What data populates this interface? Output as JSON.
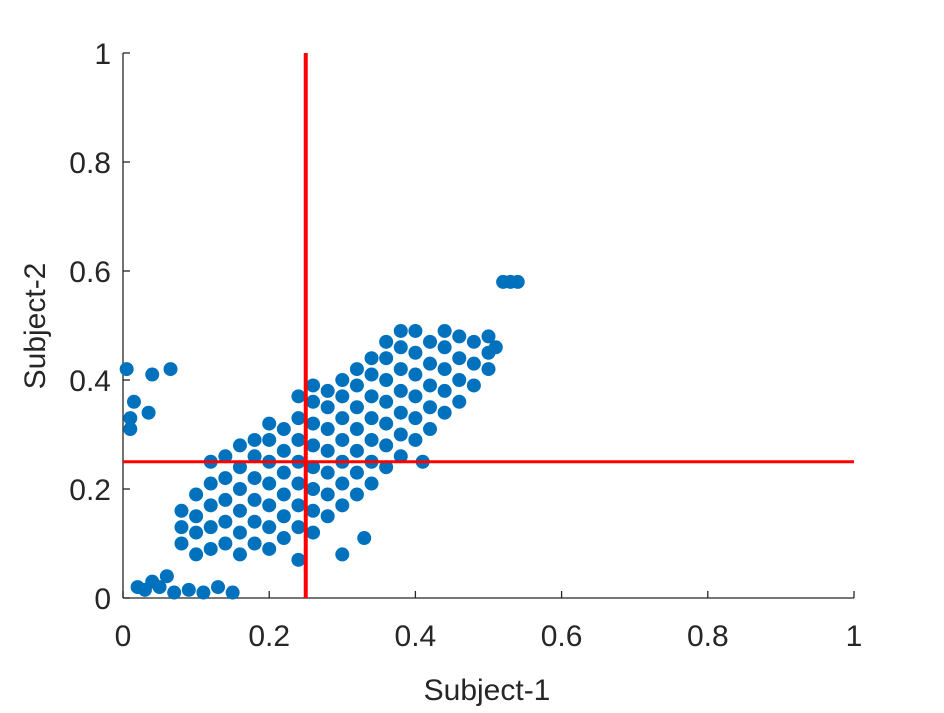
{
  "chart_data": {
    "type": "scatter",
    "x_label": "Subject-1",
    "y_label": "Subject-2",
    "xlim": [
      0,
      1
    ],
    "ylim": [
      0,
      1
    ],
    "xticks": [
      0,
      0.2,
      0.4,
      0.6,
      0.8,
      1
    ],
    "yticks": [
      0,
      0.2,
      0.4,
      0.6,
      0.8,
      1
    ],
    "color": "#0072bd",
    "reference_lines": {
      "x": 0.25,
      "y": 0.25,
      "color": "#ff0000"
    },
    "x": [
      0.005,
      0.04,
      0.065,
      0.01,
      0.01,
      0.035,
      0.015,
      0.02,
      0.03,
      0.05,
      0.07,
      0.09,
      0.11,
      0.13,
      0.15,
      0.04,
      0.06,
      0.08,
      0.08,
      0.08,
      0.1,
      0.1,
      0.1,
      0.1,
      0.12,
      0.12,
      0.12,
      0.12,
      0.12,
      0.14,
      0.14,
      0.14,
      0.14,
      0.14,
      0.16,
      0.16,
      0.16,
      0.16,
      0.16,
      0.16,
      0.18,
      0.18,
      0.18,
      0.18,
      0.18,
      0.18,
      0.2,
      0.2,
      0.2,
      0.2,
      0.2,
      0.2,
      0.2,
      0.22,
      0.22,
      0.22,
      0.22,
      0.22,
      0.22,
      0.24,
      0.24,
      0.24,
      0.24,
      0.24,
      0.24,
      0.24,
      0.24,
      0.26,
      0.26,
      0.26,
      0.26,
      0.26,
      0.26,
      0.26,
      0.26,
      0.28,
      0.28,
      0.28,
      0.28,
      0.28,
      0.28,
      0.28,
      0.3,
      0.3,
      0.3,
      0.3,
      0.3,
      0.3,
      0.3,
      0.32,
      0.32,
      0.32,
      0.32,
      0.32,
      0.32,
      0.32,
      0.34,
      0.34,
      0.34,
      0.34,
      0.34,
      0.34,
      0.34,
      0.36,
      0.36,
      0.36,
      0.36,
      0.36,
      0.36,
      0.36,
      0.38,
      0.38,
      0.38,
      0.38,
      0.38,
      0.38,
      0.38,
      0.4,
      0.4,
      0.4,
      0.4,
      0.4,
      0.4,
      0.42,
      0.42,
      0.42,
      0.42,
      0.42,
      0.44,
      0.44,
      0.44,
      0.44,
      0.44,
      0.46,
      0.46,
      0.46,
      0.46,
      0.48,
      0.48,
      0.48,
      0.5,
      0.5,
      0.5,
      0.51,
      0.52,
      0.53,
      0.54,
      0.3,
      0.33,
      0.41
    ],
    "values": [
      0.42,
      0.41,
      0.42,
      0.33,
      0.31,
      0.34,
      0.36,
      0.02,
      0.015,
      0.02,
      0.01,
      0.015,
      0.01,
      0.02,
      0.01,
      0.03,
      0.04,
      0.1,
      0.13,
      0.16,
      0.08,
      0.12,
      0.15,
      0.19,
      0.09,
      0.13,
      0.17,
      0.21,
      0.25,
      0.1,
      0.14,
      0.18,
      0.22,
      0.26,
      0.08,
      0.12,
      0.16,
      0.2,
      0.24,
      0.28,
      0.1,
      0.14,
      0.18,
      0.22,
      0.26,
      0.29,
      0.09,
      0.13,
      0.17,
      0.21,
      0.25,
      0.29,
      0.32,
      0.11,
      0.15,
      0.19,
      0.23,
      0.27,
      0.31,
      0.07,
      0.13,
      0.17,
      0.21,
      0.25,
      0.29,
      0.33,
      0.37,
      0.12,
      0.16,
      0.2,
      0.24,
      0.28,
      0.32,
      0.36,
      0.39,
      0.15,
      0.19,
      0.23,
      0.27,
      0.31,
      0.35,
      0.38,
      0.17,
      0.21,
      0.25,
      0.29,
      0.33,
      0.37,
      0.4,
      0.19,
      0.23,
      0.27,
      0.31,
      0.35,
      0.39,
      0.42,
      0.21,
      0.25,
      0.29,
      0.33,
      0.37,
      0.41,
      0.44,
      0.24,
      0.28,
      0.32,
      0.36,
      0.4,
      0.44,
      0.47,
      0.26,
      0.3,
      0.34,
      0.38,
      0.42,
      0.46,
      0.49,
      0.29,
      0.33,
      0.37,
      0.41,
      0.45,
      0.49,
      0.31,
      0.35,
      0.39,
      0.43,
      0.47,
      0.34,
      0.38,
      0.42,
      0.46,
      0.49,
      0.36,
      0.4,
      0.44,
      0.48,
      0.39,
      0.43,
      0.47,
      0.42,
      0.45,
      0.48,
      0.46,
      0.58,
      0.58,
      0.58,
      0.08,
      0.11,
      0.25
    ]
  }
}
